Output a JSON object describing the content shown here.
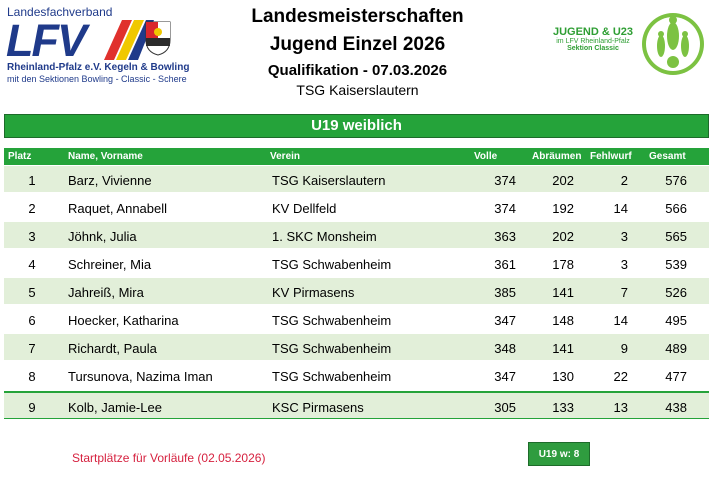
{
  "lfv_logo": {
    "top": "Landesfachverband",
    "big": "LFV",
    "line1": "Rheinland-Pfalz e.V. Kegeln & Bowling",
    "line2": "mit den Sektionen Bowling - Classic - Schere"
  },
  "header": {
    "title": "Landesmeisterschaften",
    "subtitle": "Jugend Einzel 2026",
    "qualification": "Qualifikation - 07.03.2026",
    "venue": "TSG Kaiserslautern"
  },
  "jugend_logo": {
    "line1": "JUGEND & U23",
    "line2": "im LFV Rheinland-Pfalz",
    "line3": "Sektion Classic"
  },
  "category": "U19 weiblich",
  "columns": {
    "platz": "Platz",
    "name": "Name, Vorname",
    "verein": "Verein",
    "volle": "Volle",
    "abraeumen": "Abräumen",
    "fehlwurf": "Fehlwurf",
    "gesamt": "Gesamt"
  },
  "rows": [
    {
      "platz": "1",
      "name": "Barz, Vivienne",
      "verein": "TSG Kaiserslautern",
      "volle": "374",
      "abraeumen": "202",
      "fehlwurf": "2",
      "gesamt": "576"
    },
    {
      "platz": "2",
      "name": "Raquet, Annabell",
      "verein": "KV Dellfeld",
      "volle": "374",
      "abraeumen": "192",
      "fehlwurf": "14",
      "gesamt": "566"
    },
    {
      "platz": "3",
      "name": "Jöhnk, Julia",
      "verein": "1. SKC Monsheim",
      "volle": "363",
      "abraeumen": "202",
      "fehlwurf": "3",
      "gesamt": "565"
    },
    {
      "platz": "4",
      "name": "Schreiner, Mia",
      "verein": "TSG Schwabenheim",
      "volle": "361",
      "abraeumen": "178",
      "fehlwurf": "3",
      "gesamt": "539"
    },
    {
      "platz": "5",
      "name": "Jahreiß, Mira",
      "verein": "KV Pirmasens",
      "volle": "385",
      "abraeumen": "141",
      "fehlwurf": "7",
      "gesamt": "526"
    },
    {
      "platz": "6",
      "name": "Hoecker, Katharina",
      "verein": "TSG Schwabenheim",
      "volle": "347",
      "abraeumen": "148",
      "fehlwurf": "14",
      "gesamt": "495"
    },
    {
      "platz": "7",
      "name": "Richardt, Paula",
      "verein": "TSG Schwabenheim",
      "volle": "348",
      "abraeumen": "141",
      "fehlwurf": "9",
      "gesamt": "489"
    },
    {
      "platz": "8",
      "name": "Tursunova, Nazima Iman",
      "verein": "TSG Schwabenheim",
      "volle": "347",
      "abraeumen": "130",
      "fehlwurf": "22",
      "gesamt": "477"
    },
    {
      "platz": "9",
      "name": "Kolb, Jamie-Lee",
      "verein": "KSC Pirmasens",
      "volle": "305",
      "abraeumen": "133",
      "fehlwurf": "13",
      "gesamt": "438"
    }
  ],
  "footer_note": "Startplätze für Vorläufe (02.05.2026)",
  "badge": "U19 w:  8",
  "colors": {
    "green": "#25a33a",
    "row_tint": "#e2efd9",
    "note_red": "#d6213f",
    "logo_blue": "#1f3a8a"
  }
}
